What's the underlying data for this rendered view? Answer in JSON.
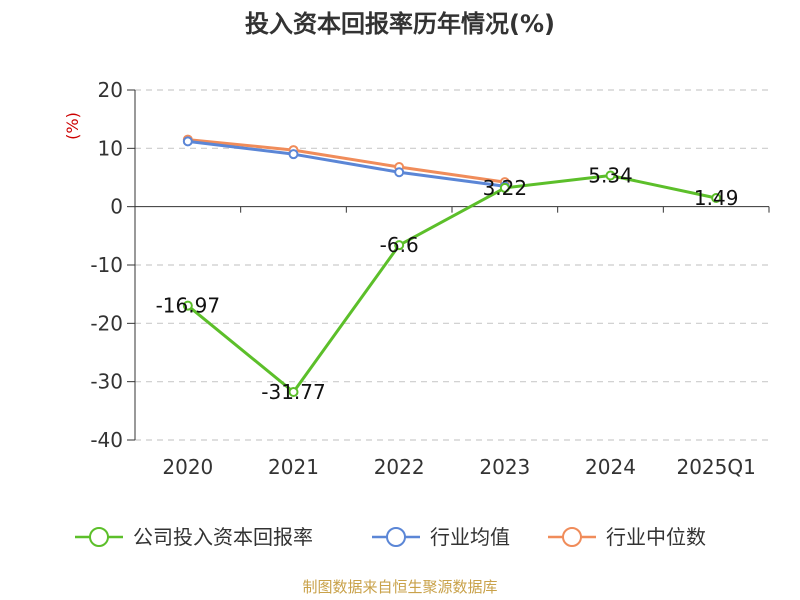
{
  "chart_data": {
    "type": "line",
    "title": "投入资本回报率历年情况(%)",
    "ylabel": "(%)",
    "categories": [
      "2020",
      "2021",
      "2022",
      "2023",
      "2024",
      "2025Q1"
    ],
    "ylim": [
      -40,
      20
    ],
    "yticks": [
      20,
      10,
      0,
      -10,
      -20,
      -30,
      -40
    ],
    "grid": true,
    "legend_position": "bottom",
    "series": [
      {
        "name": "公司投入资本回报率",
        "color": "#5cbf2a",
        "values": [
          -16.97,
          -31.77,
          -6.6,
          3.22,
          5.34,
          1.49
        ],
        "labels": [
          "-16.97",
          "-31.77",
          "-6.6",
          "3.22",
          "5.34",
          "1.49"
        ]
      },
      {
        "name": "行业均值",
        "color": "#5b86d6",
        "values": [
          11.2,
          9.0,
          5.9,
          3.5,
          null,
          null
        ]
      },
      {
        "name": "行业中位数",
        "color": "#f08c5a",
        "values": [
          11.5,
          9.7,
          6.8,
          4.2,
          null,
          null
        ]
      }
    ],
    "source": "制图数据来自恒生聚源数据库"
  }
}
